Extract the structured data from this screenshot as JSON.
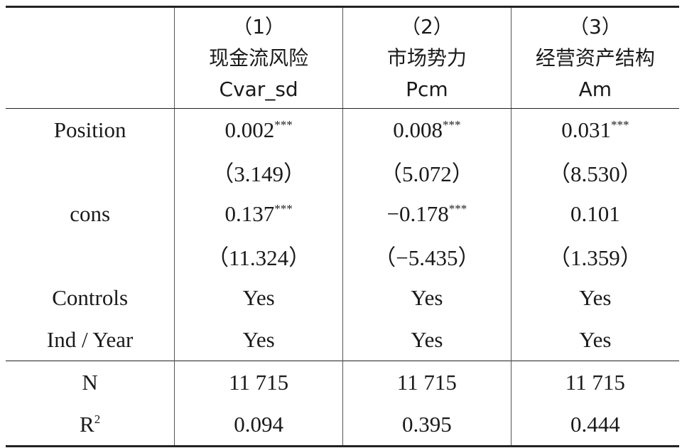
{
  "table": {
    "header": [
      {
        "num": "（1）",
        "name": "现金流风险",
        "var": "Cvar_sd"
      },
      {
        "num": "（2）",
        "name": "市场势力",
        "var": "Pcm"
      },
      {
        "num": "（3）",
        "name": "经营资产结构",
        "var": "Am"
      }
    ],
    "rows": [
      {
        "label": "Position",
        "cells": [
          {
            "text": "0.002",
            "sup": "***"
          },
          {
            "text": "0.008",
            "sup": "***"
          },
          {
            "text": "0.031",
            "sup": "***"
          }
        ]
      },
      {
        "cells": [
          {
            "text": "（3.149）"
          },
          {
            "text": "（5.072）"
          },
          {
            "text": "（8.530）"
          }
        ]
      },
      {
        "label": "cons",
        "cells": [
          {
            "text": "0.137",
            "sup": "***"
          },
          {
            "text": "−0.178",
            "sup": "***"
          },
          {
            "text": "0.101"
          }
        ]
      },
      {
        "cells": [
          {
            "text": "（11.324）"
          },
          {
            "text": "（−5.435）"
          },
          {
            "text": "（1.359）"
          }
        ]
      },
      {
        "label": "Controls",
        "cells": [
          {
            "text": "Yes"
          },
          {
            "text": "Yes"
          },
          {
            "text": "Yes"
          }
        ]
      },
      {
        "label": "Ind / Year",
        "cells": [
          {
            "text": "Yes"
          },
          {
            "text": "Yes"
          },
          {
            "text": "Yes"
          }
        ]
      },
      {
        "label": "N",
        "cells": [
          {
            "text": "11 715"
          },
          {
            "text": "11 715"
          },
          {
            "text": "11 715"
          }
        ],
        "rule_above": true
      },
      {
        "label": "R",
        "label_sup": "2",
        "cells": [
          {
            "text": "0.094"
          },
          {
            "text": "0.395"
          },
          {
            "text": "0.444"
          }
        ]
      }
    ]
  }
}
